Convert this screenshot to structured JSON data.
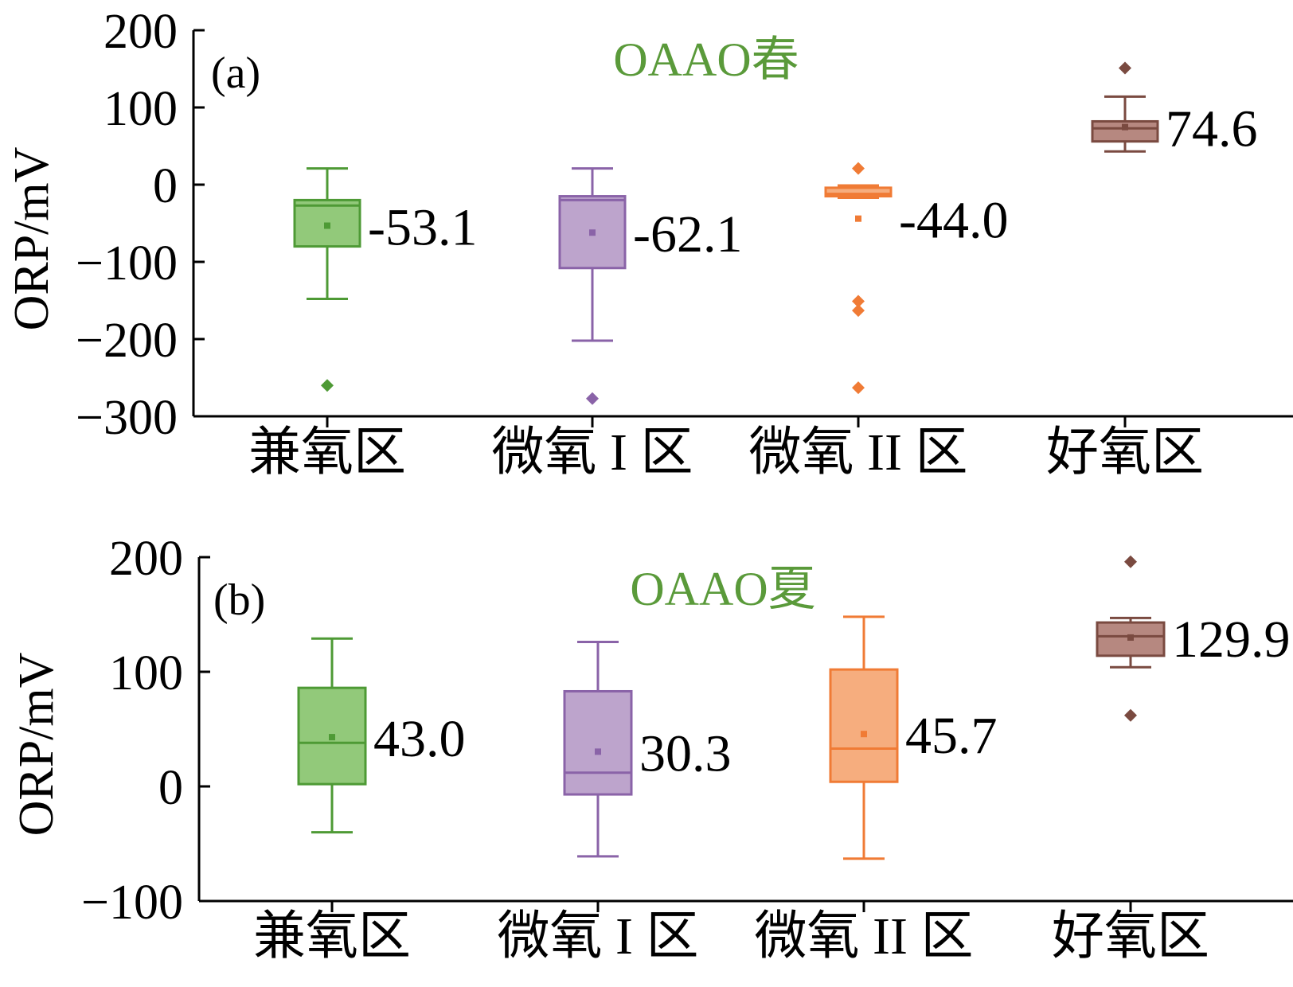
{
  "colors": {
    "axis": "#000000",
    "title": "#5a9a3a",
    "green_stroke": "#4e9a35",
    "green_fill": "#92c97a",
    "purple_stroke": "#8a63a8",
    "purple_fill": "#bda4cc",
    "orange_stroke": "#f07b35",
    "orange_fill": "#f6ad7e",
    "brown_stroke": "#7a4a40",
    "brown_fill": "#b68880"
  },
  "chart_data": [
    {
      "type": "box",
      "panel_label": "(a)",
      "title": "OAAO春",
      "xlabel": "",
      "ylabel": "ORP/mV",
      "ylim": [
        -300,
        200
      ],
      "yticks": [
        200,
        100,
        0,
        -100,
        -200,
        -300
      ],
      "ytick_labels": [
        "200",
        "100",
        "0",
        "−100",
        "−200",
        "−300"
      ],
      "categories": [
        "兼氧区",
        "微氧 I 区",
        "微氧 II 区",
        "好氧区"
      ],
      "boxes": [
        {
          "category": "兼氧区",
          "color": "green",
          "whisker_low": -148,
          "q1": -80,
          "median": -27,
          "q3": -20,
          "whisker_high": 21,
          "mean": -53.1,
          "mean_label": "-53.1",
          "outliers": [
            -260
          ]
        },
        {
          "category": "微氧 I 区",
          "color": "purple",
          "whisker_low": -202,
          "q1": -108,
          "median": -20,
          "q3": -15,
          "whisker_high": 21,
          "mean": -62.1,
          "mean_label": "-62.1",
          "outliers": [
            -277
          ]
        },
        {
          "category": "微氧 II 区",
          "color": "orange",
          "whisker_low": -17,
          "q1": -15,
          "median": -12,
          "q3": -4,
          "whisker_high": -1,
          "mean": -44.0,
          "mean_label": "-44.0",
          "outliers": [
            21,
            -151,
            -163,
            -263
          ]
        },
        {
          "category": "好氧区",
          "color": "brown",
          "whisker_low": 43,
          "q1": 56,
          "median": 73,
          "q3": 82,
          "whisker_high": 114,
          "mean": 74.6,
          "mean_label": "74.6",
          "outliers": [
            151
          ]
        }
      ]
    },
    {
      "type": "box",
      "panel_label": "(b)",
      "title": "OAAO夏",
      "xlabel": "",
      "ylabel": "ORP/mV",
      "ylim": [
        -100,
        200
      ],
      "yticks": [
        200,
        100,
        0,
        -100
      ],
      "ytick_labels": [
        "200",
        "100",
        "0",
        "−100"
      ],
      "categories": [
        "兼氧区",
        "微氧 I 区",
        "微氧 II 区",
        "好氧区"
      ],
      "boxes": [
        {
          "category": "兼氧区",
          "color": "green",
          "whisker_low": -40,
          "q1": 2,
          "median": 38,
          "q3": 86,
          "whisker_high": 129,
          "mean": 43.0,
          "mean_label": "43.0",
          "outliers": []
        },
        {
          "category": "微氧 I 区",
          "color": "purple",
          "whisker_low": -61,
          "q1": -7,
          "median": 12,
          "q3": 83,
          "whisker_high": 126,
          "mean": 30.3,
          "mean_label": "30.3",
          "outliers": []
        },
        {
          "category": "微氧 II 区",
          "color": "orange",
          "whisker_low": -63,
          "q1": 4,
          "median": 33,
          "q3": 102,
          "whisker_high": 148,
          "mean": 45.7,
          "mean_label": "45.7",
          "outliers": []
        },
        {
          "category": "好氧区",
          "color": "brown",
          "whisker_low": 104,
          "q1": 114,
          "median": 131,
          "q3": 143,
          "whisker_high": 147,
          "mean": 129.9,
          "mean_label": "129.9",
          "outliers": [
            196,
            62
          ]
        }
      ]
    }
  ]
}
